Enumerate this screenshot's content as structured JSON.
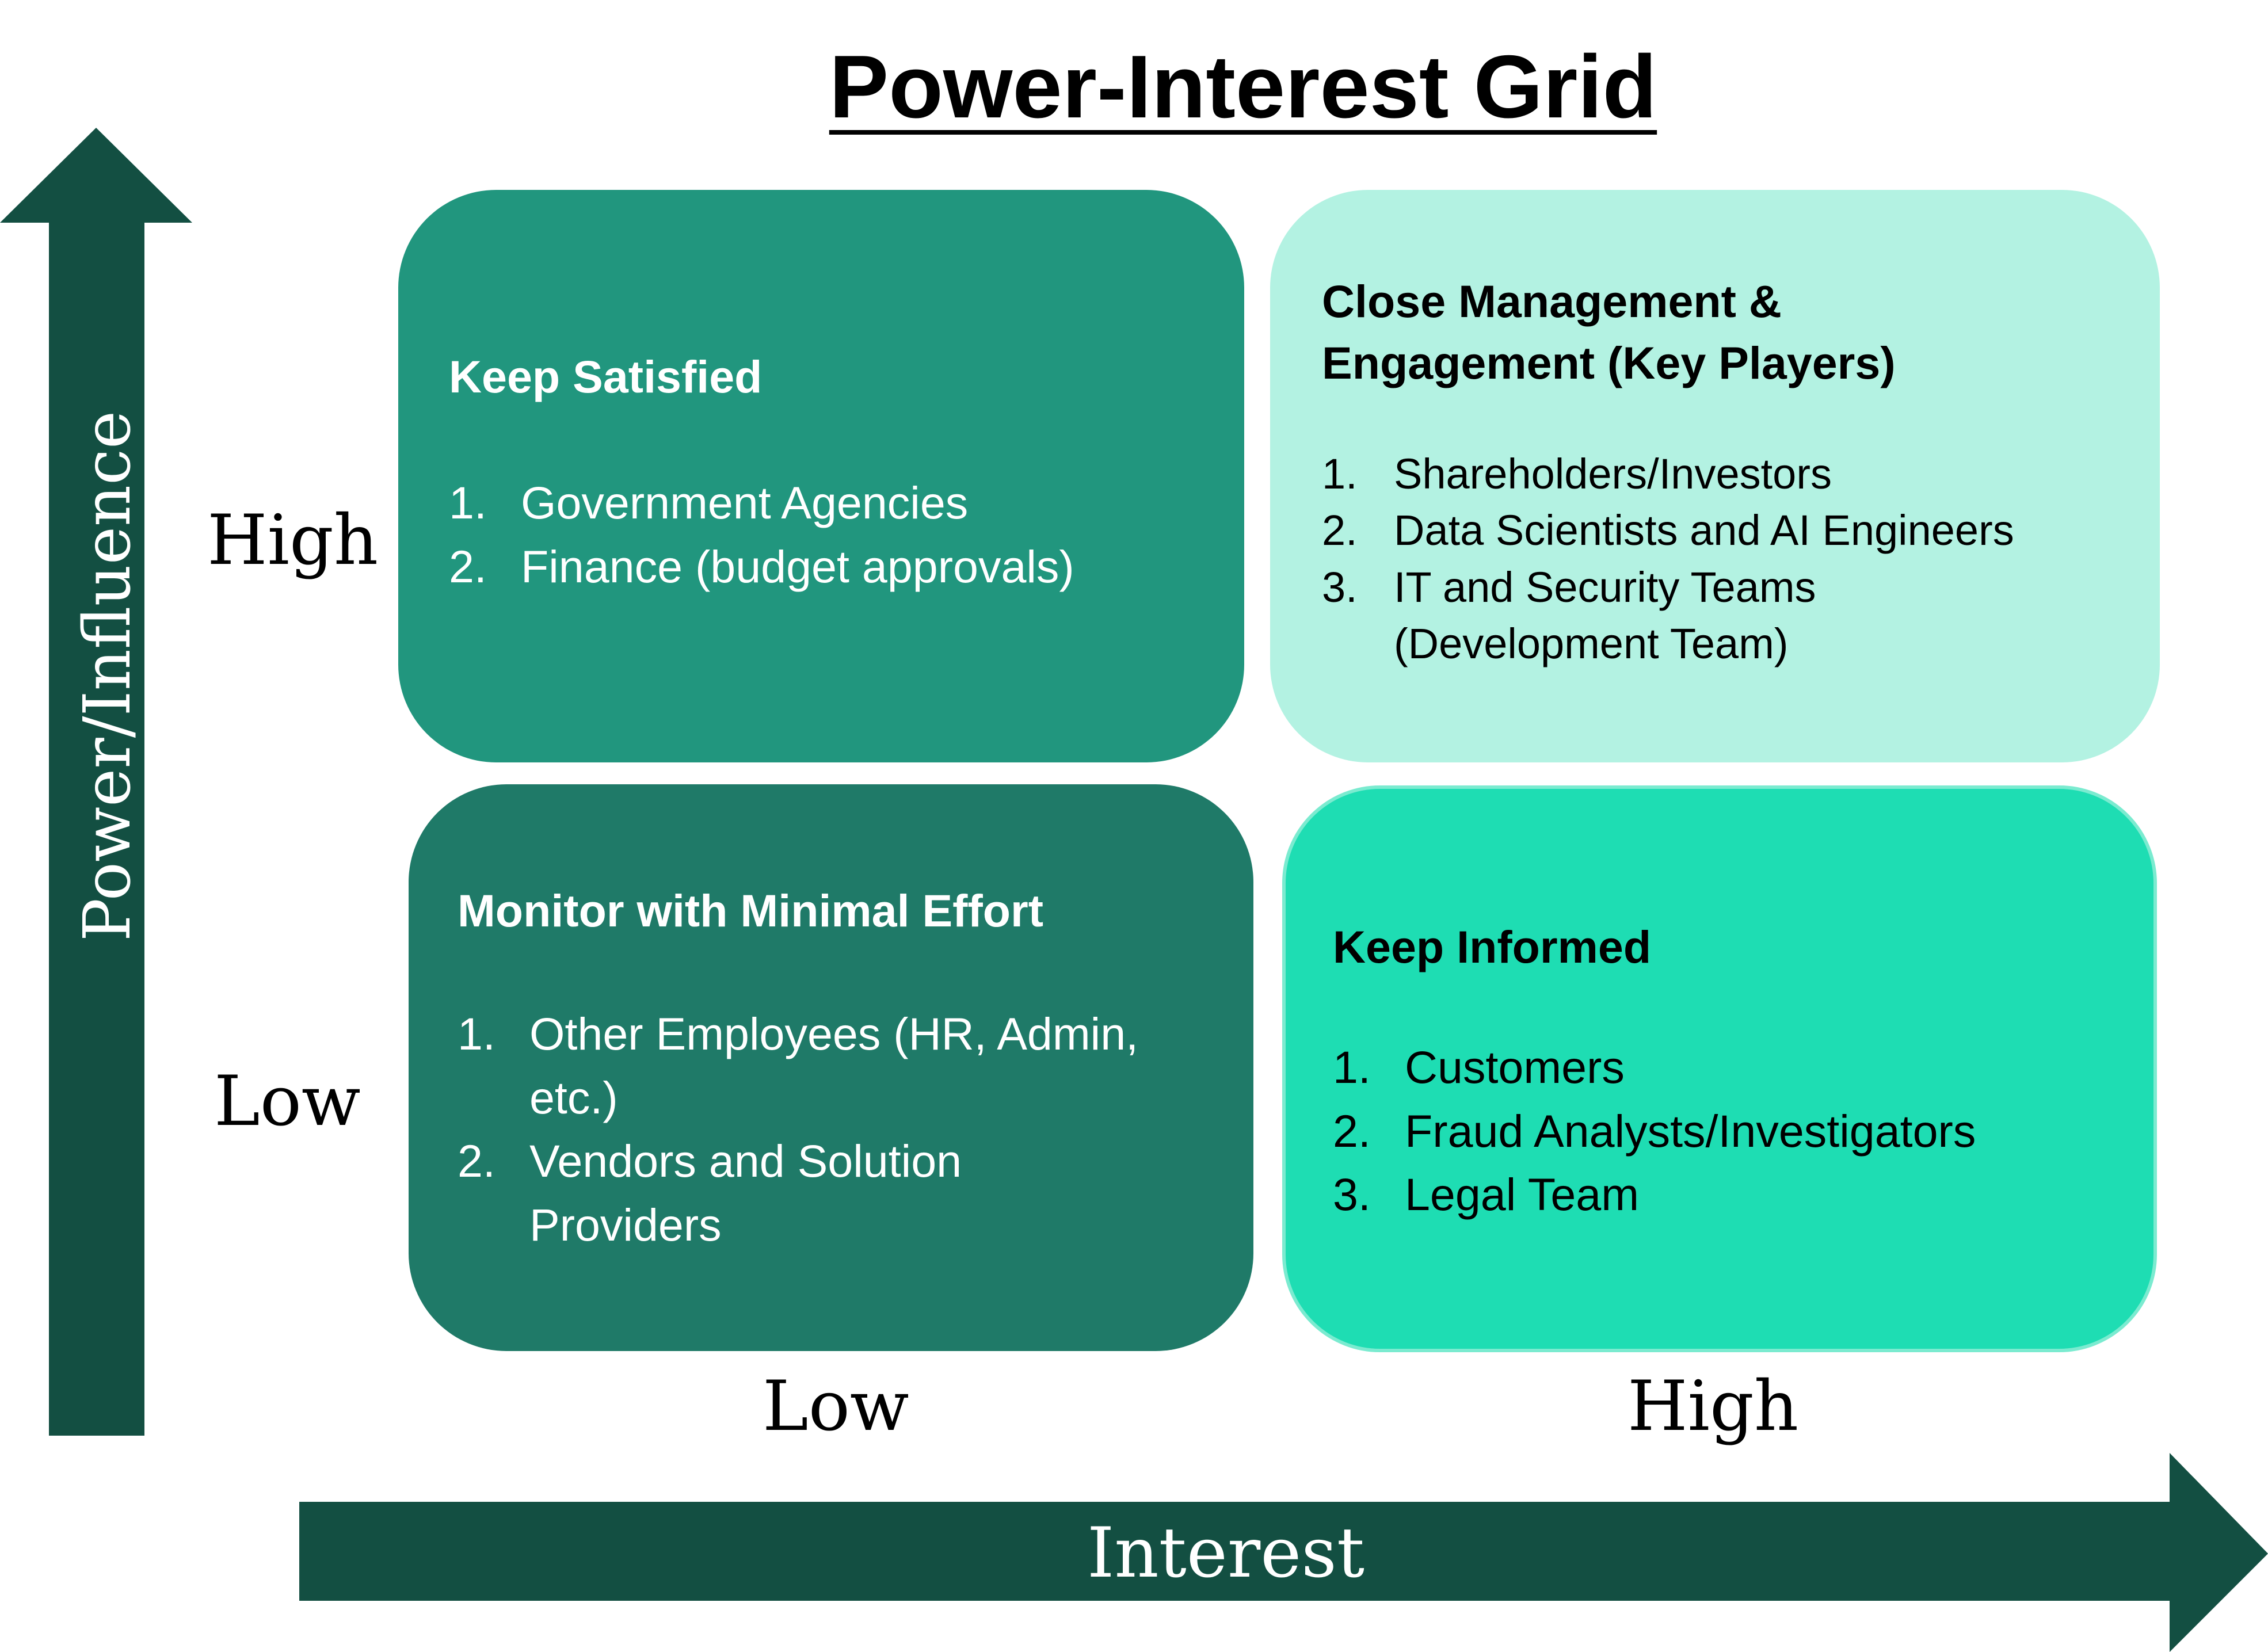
{
  "title": "Power-Interest Grid",
  "colors": {
    "arrow": "#134F42",
    "keep_satisfied": "#21967E",
    "close_management": "#B3F2E2",
    "monitor": "#1F7A68",
    "keep_informed": "#1EDDB3"
  },
  "y_axis": {
    "title": "Power/Influence",
    "high": "High",
    "low": "Low"
  },
  "x_axis": {
    "title": "Interest",
    "low": "Low",
    "high": "High"
  },
  "quadrants": {
    "keep_satisfied": {
      "heading": "Keep Satisfied",
      "items": [
        "Government Agencies",
        "Finance (budget approvals)"
      ]
    },
    "close_management": {
      "heading_line1": "Close Management &",
      "heading_line2": "Engagement (Key Players)",
      "items": [
        "Shareholders/Investors",
        "Data Scientists and AI Engineers",
        "IT and Security Teams (Development Team)"
      ]
    },
    "monitor": {
      "heading": "Monitor with Minimal Effort",
      "items": [
        "Other Employees (HR, Admin, etc.)",
        "Vendors and Solution Providers"
      ]
    },
    "keep_informed": {
      "heading": "Keep Informed",
      "items": [
        "Customers",
        "Fraud Analysts/Investigators",
        "Legal Team"
      ]
    }
  },
  "numbers": [
    "1.",
    "2.",
    "3."
  ]
}
